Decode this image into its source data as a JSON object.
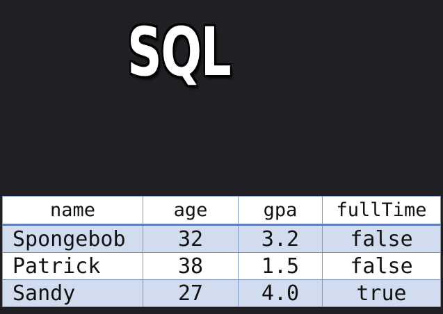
{
  "title": "SQL",
  "table": {
    "headers": [
      "name",
      "age",
      "gpa",
      "fullTime"
    ],
    "rows": [
      [
        "Spongebob",
        "32",
        "3.2",
        "false"
      ],
      [
        "Patrick",
        "38",
        "1.5",
        "false"
      ],
      [
        "Sandy",
        "27",
        "4.0",
        "true"
      ]
    ]
  },
  "colors": {
    "background": "#202024",
    "header_bg": "#ffffff",
    "band_row": "#d1dcee",
    "border": "#7a96c7"
  }
}
